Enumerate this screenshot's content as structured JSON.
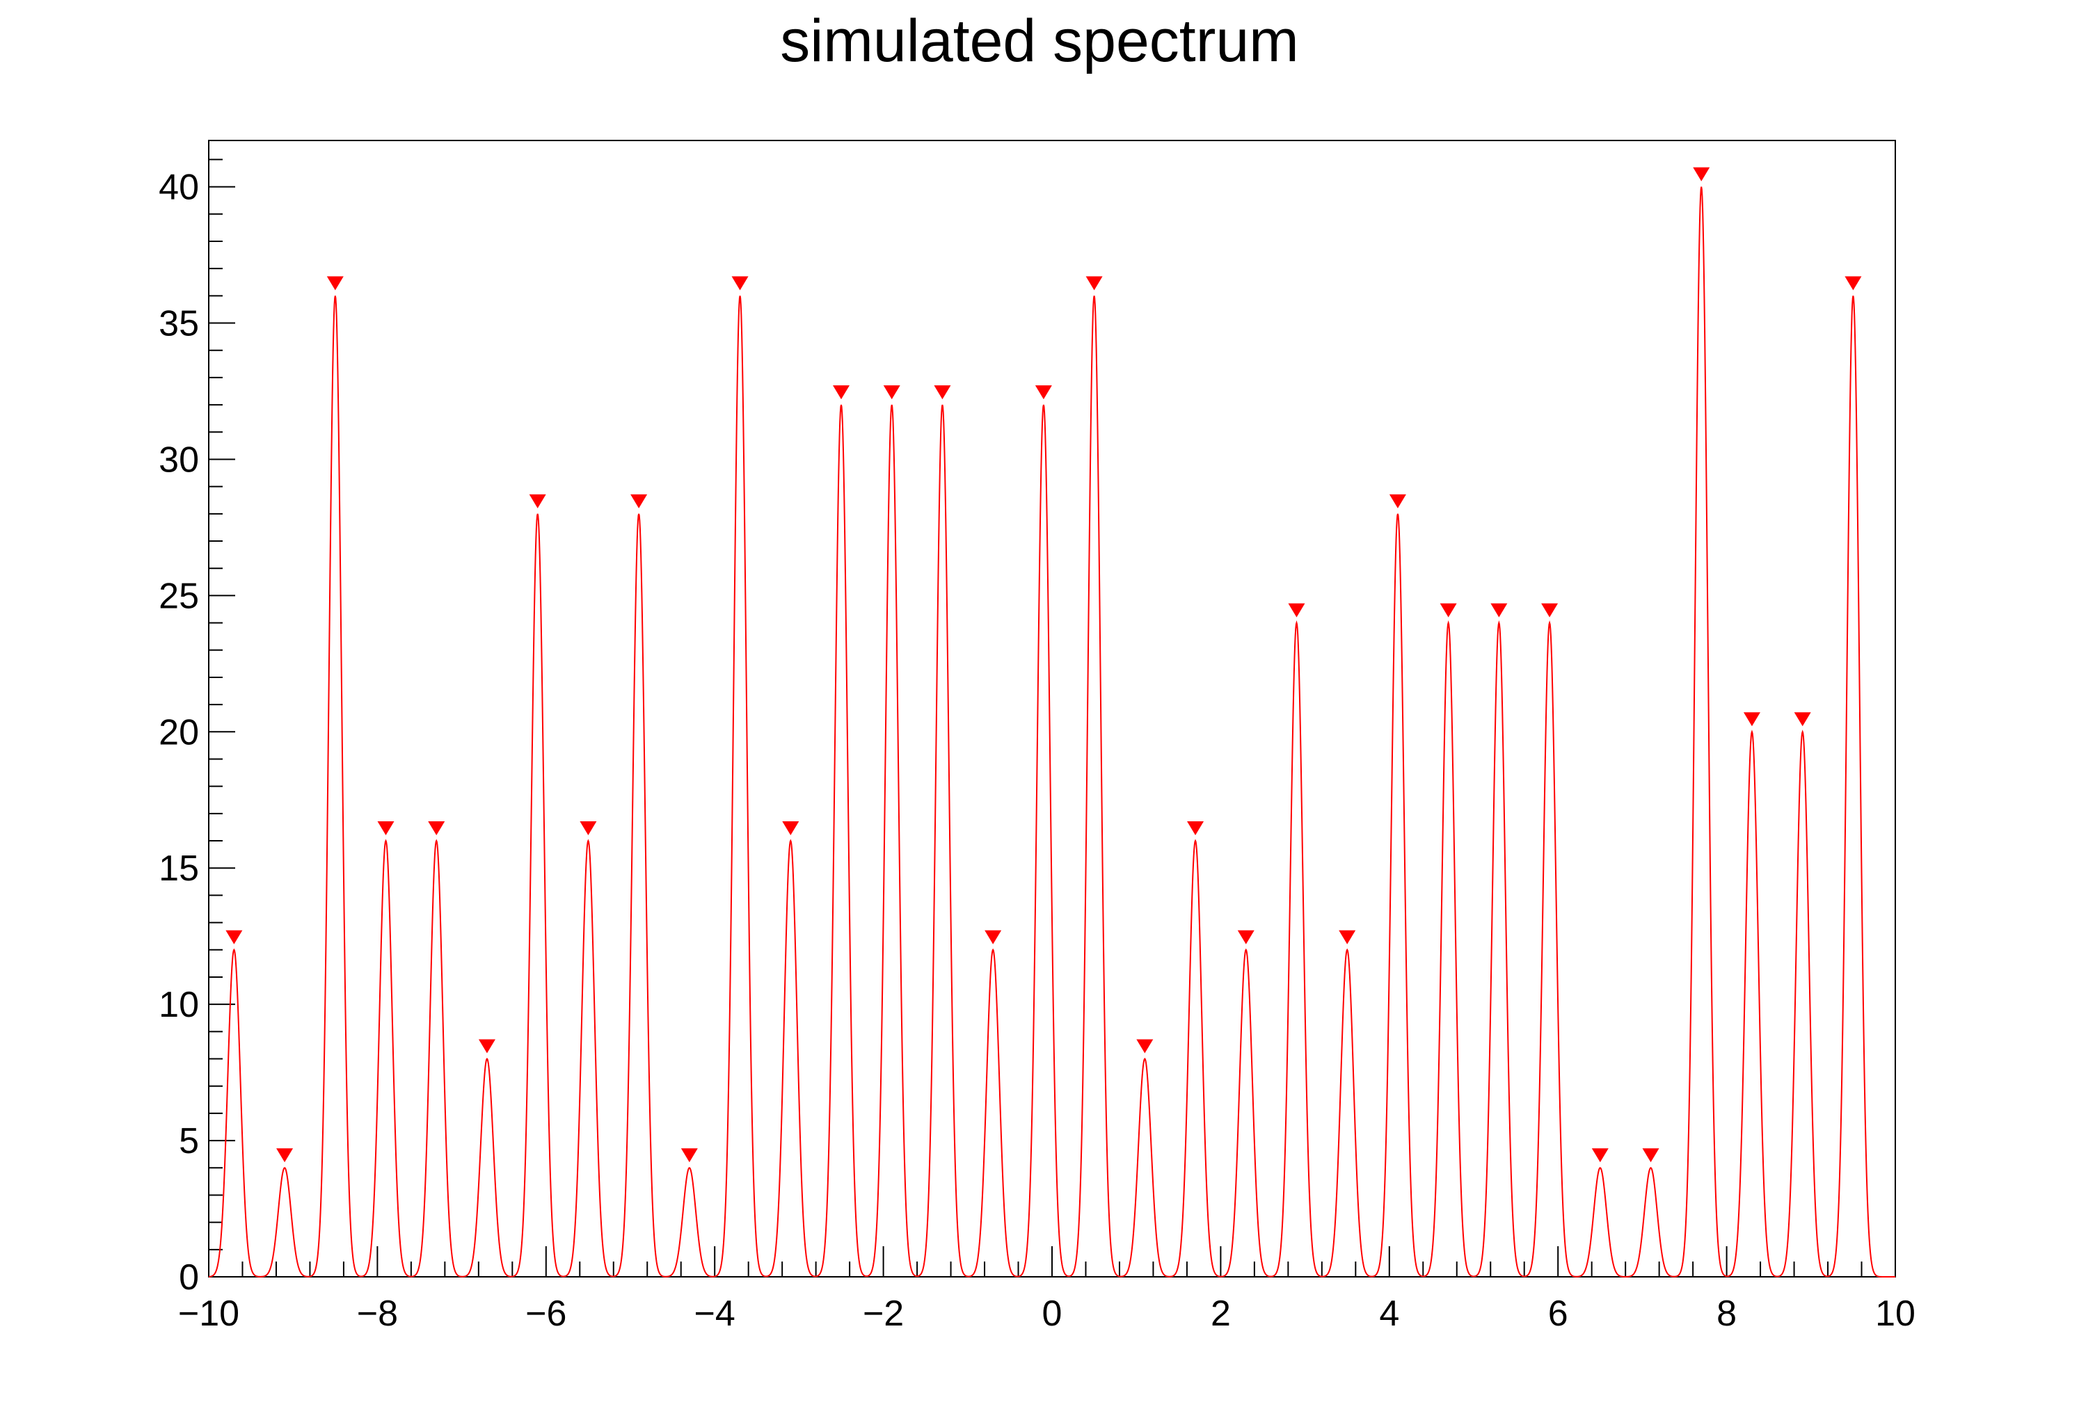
{
  "chart_data": {
    "type": "line",
    "title": "simulated spectrum",
    "xlabel": "",
    "ylabel": "",
    "xlim": [
      -10,
      10
    ],
    "ylim": [
      0,
      41.7
    ],
    "x_ticks": [
      -10,
      -8,
      -6,
      -4,
      -2,
      0,
      2,
      4,
      6,
      8,
      10
    ],
    "x_tick_labels": [
      "−10",
      "−8",
      "−6",
      "−4",
      "−2",
      "0",
      "2",
      "4",
      "6",
      "8",
      "10"
    ],
    "y_ticks": [
      0,
      5,
      10,
      15,
      20,
      25,
      30,
      35,
      40
    ],
    "y_tick_labels": [
      "0",
      "5",
      "10",
      "15",
      "20",
      "25",
      "30",
      "35",
      "40"
    ],
    "grid": false,
    "line_color": "#ff0000",
    "marker_color": "#ff0000",
    "peak_sigma": 0.075,
    "series": [
      {
        "peaks": [
          {
            "x": -9.7,
            "y": 12
          },
          {
            "x": -9.1,
            "y": 4
          },
          {
            "x": -8.5,
            "y": 36
          },
          {
            "x": -7.9,
            "y": 16
          },
          {
            "x": -7.3,
            "y": 16
          },
          {
            "x": -6.7,
            "y": 8
          },
          {
            "x": -6.1,
            "y": 28
          },
          {
            "x": -5.5,
            "y": 16
          },
          {
            "x": -4.9,
            "y": 28
          },
          {
            "x": -4.3,
            "y": 4
          },
          {
            "x": -3.7,
            "y": 36
          },
          {
            "x": -3.1,
            "y": 16
          },
          {
            "x": -2.5,
            "y": 32
          },
          {
            "x": -1.9,
            "y": 32
          },
          {
            "x": -1.3,
            "y": 32
          },
          {
            "x": -0.7,
            "y": 12
          },
          {
            "x": -0.1,
            "y": 32
          },
          {
            "x": 0.5,
            "y": 36
          },
          {
            "x": 1.1,
            "y": 8
          },
          {
            "x": 1.7,
            "y": 16
          },
          {
            "x": 2.3,
            "y": 12
          },
          {
            "x": 2.9,
            "y": 24
          },
          {
            "x": 3.5,
            "y": 12
          },
          {
            "x": 4.1,
            "y": 28
          },
          {
            "x": 4.7,
            "y": 24
          },
          {
            "x": 5.3,
            "y": 24
          },
          {
            "x": 5.9,
            "y": 24
          },
          {
            "x": 6.5,
            "y": 4
          },
          {
            "x": 7.1,
            "y": 4
          },
          {
            "x": 7.7,
            "y": 40
          },
          {
            "x": 8.3,
            "y": 20
          },
          {
            "x": 8.9,
            "y": 20
          },
          {
            "x": 9.5,
            "y": 36
          }
        ]
      }
    ]
  }
}
